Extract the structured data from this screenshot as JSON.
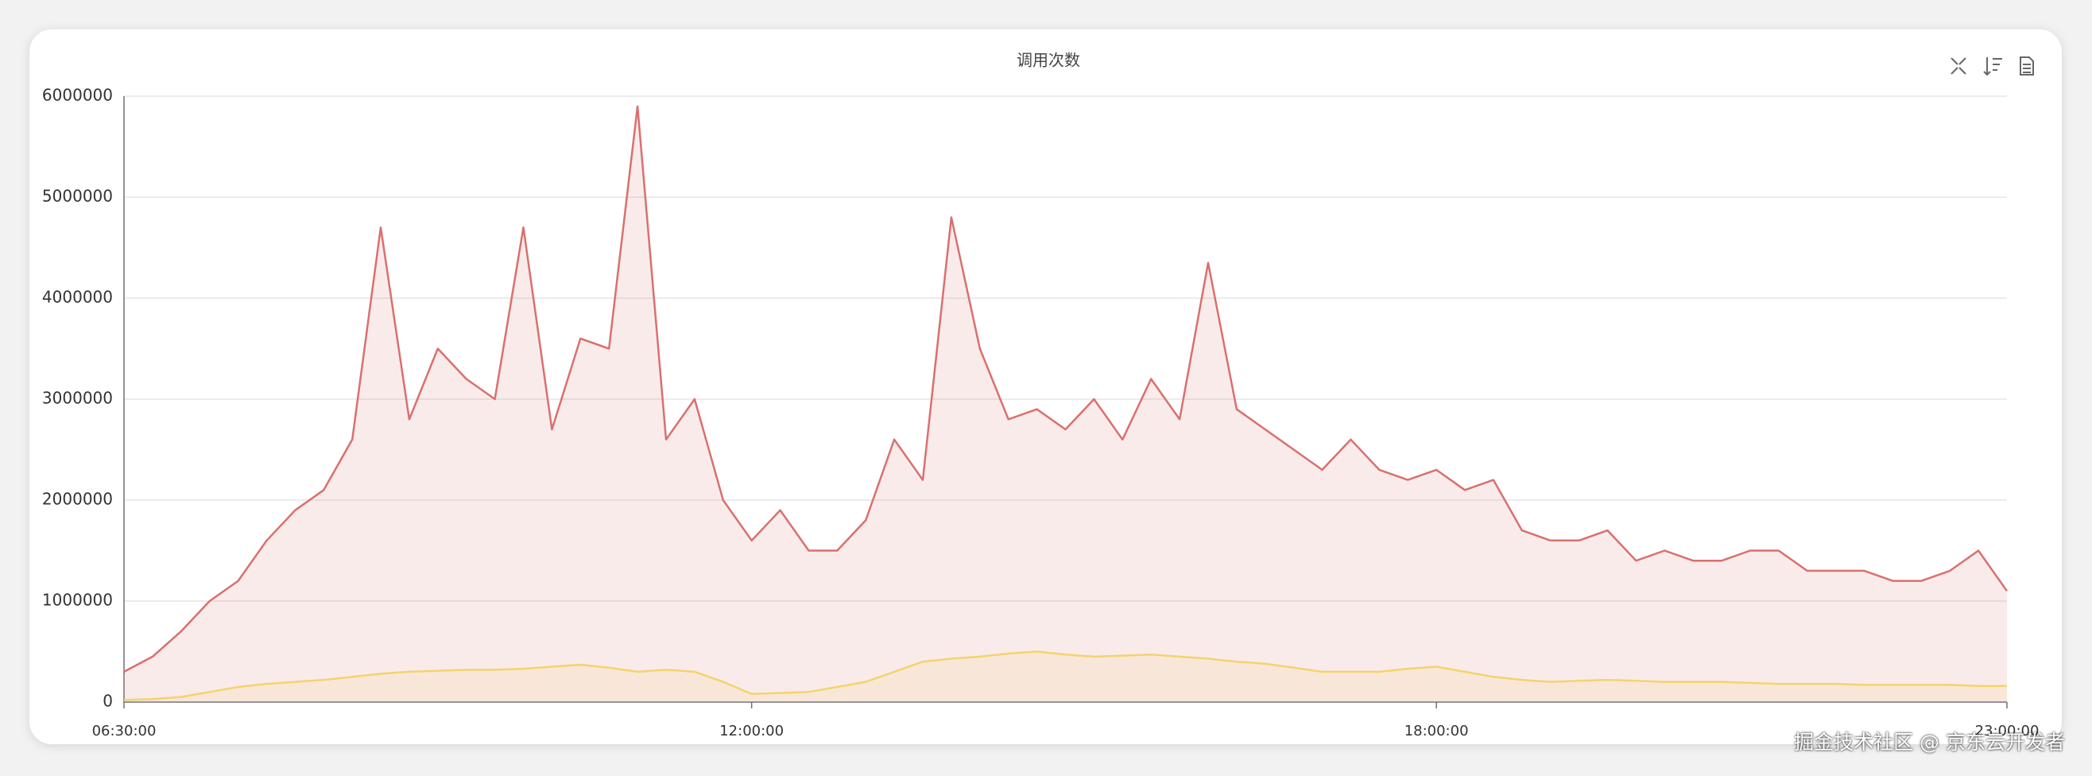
{
  "chart_data": {
    "type": "line",
    "title": "调用次数",
    "x": [
      6.5,
      6.75,
      7,
      7.25,
      7.5,
      7.75,
      8,
      8.25,
      8.5,
      8.75,
      9,
      9.25,
      9.5,
      9.75,
      10,
      10.25,
      10.5,
      10.75,
      11,
      11.25,
      11.5,
      11.75,
      12,
      12.25,
      12.5,
      12.75,
      13,
      13.25,
      13.5,
      13.75,
      14,
      14.25,
      14.5,
      14.75,
      15,
      15.25,
      15.5,
      15.75,
      16,
      16.25,
      16.5,
      16.75,
      17,
      17.25,
      17.5,
      17.75,
      18,
      18.25,
      18.5,
      18.75,
      19,
      19.25,
      19.5,
      19.75,
      20,
      20.25,
      20.5,
      20.75,
      21,
      21.25,
      21.5,
      21.75,
      22,
      22.25,
      22.5,
      22.75,
      23
    ],
    "series": [
      {
        "color": "#d9706e",
        "values": [
          300000,
          450000,
          700000,
          1000000,
          1200000,
          1600000,
          1900000,
          2100000,
          2600000,
          4700000,
          2800000,
          3500000,
          3200000,
          3000000,
          4700000,
          2700000,
          3600000,
          3500000,
          5900000,
          2600000,
          3000000,
          2000000,
          1600000,
          1900000,
          1500000,
          1500000,
          1800000,
          2600000,
          2200000,
          4800000,
          3500000,
          2800000,
          2900000,
          2700000,
          3000000,
          2600000,
          3200000,
          2800000,
          4350000,
          2900000,
          2700000,
          2500000,
          2300000,
          2600000,
          2300000,
          2200000,
          2300000,
          2100000,
          2200000,
          1700000,
          1600000,
          1600000,
          1700000,
          1400000,
          1500000,
          1400000,
          1400000,
          1500000,
          1500000,
          1300000,
          1300000,
          1300000,
          1200000,
          1200000,
          1300000,
          1500000,
          1100000
        ]
      },
      {
        "color": "#f3d46c",
        "values": [
          20000,
          30000,
          50000,
          100000,
          150000,
          180000,
          200000,
          220000,
          250000,
          280000,
          300000,
          310000,
          320000,
          320000,
          330000,
          350000,
          370000,
          340000,
          300000,
          320000,
          300000,
          200000,
          80000,
          90000,
          100000,
          150000,
          200000,
          300000,
          400000,
          430000,
          450000,
          480000,
          500000,
          470000,
          450000,
          460000,
          470000,
          450000,
          430000,
          400000,
          380000,
          340000,
          300000,
          300000,
          300000,
          330000,
          350000,
          300000,
          250000,
          220000,
          200000,
          210000,
          220000,
          210000,
          200000,
          200000,
          200000,
          190000,
          180000,
          180000,
          180000,
          170000,
          170000,
          170000,
          170000,
          160000,
          160000
        ]
      }
    ],
    "xlim": [
      6.5,
      23
    ],
    "xticks": [
      {
        "value": 6.5,
        "label": "06:30:00"
      },
      {
        "value": 12,
        "label": "12:00:00"
      },
      {
        "value": 18,
        "label": "18:00:00"
      },
      {
        "value": 23,
        "label": "23:00:00"
      }
    ],
    "ylim": [
      0,
      6000000
    ],
    "yticks": [
      0,
      1000000,
      2000000,
      3000000,
      4000000,
      5000000,
      6000000
    ],
    "grid": true,
    "area": true
  },
  "watermark": "掘金技术社区 @ 京东云开发者"
}
